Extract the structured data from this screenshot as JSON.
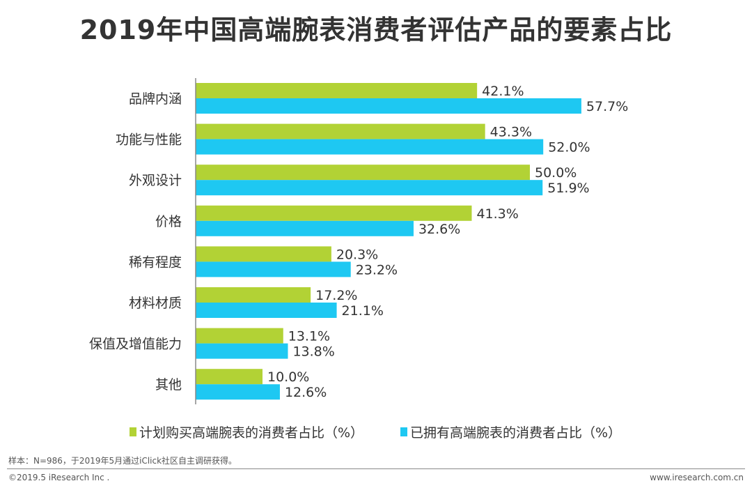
{
  "chart_data": {
    "type": "bar",
    "orientation": "horizontal",
    "title": "2019年中国高端腕表消费者评估产品的要素占比",
    "categories": [
      "品牌内涵",
      "功能与性能",
      "外观设计",
      "价格",
      "稀有程度",
      "材料材质",
      "保值及增值能力",
      "其他"
    ],
    "series": [
      {
        "name": "计划购买高端腕表的消费者占比（%）",
        "color": "#b2d235",
        "values": [
          42.1,
          43.3,
          50.0,
          41.3,
          20.3,
          17.2,
          13.1,
          10.0
        ]
      },
      {
        "name": "已拥有高端腕表的消费者占比（%）",
        "color": "#1ec8f2",
        "values": [
          57.7,
          52.0,
          51.9,
          32.6,
          23.2,
          21.1,
          13.8,
          12.6
        ]
      }
    ],
    "value_suffix": "%",
    "xlim": [
      0,
      60
    ],
    "grid": false,
    "legend_position": "bottom"
  },
  "footer": {
    "note": "样本：N=986，于2019年5月通过iClick社区自主调研获得。",
    "copyright": "©2019.5 iResearch Inc .",
    "website": "www.iresearch.com.cn"
  }
}
